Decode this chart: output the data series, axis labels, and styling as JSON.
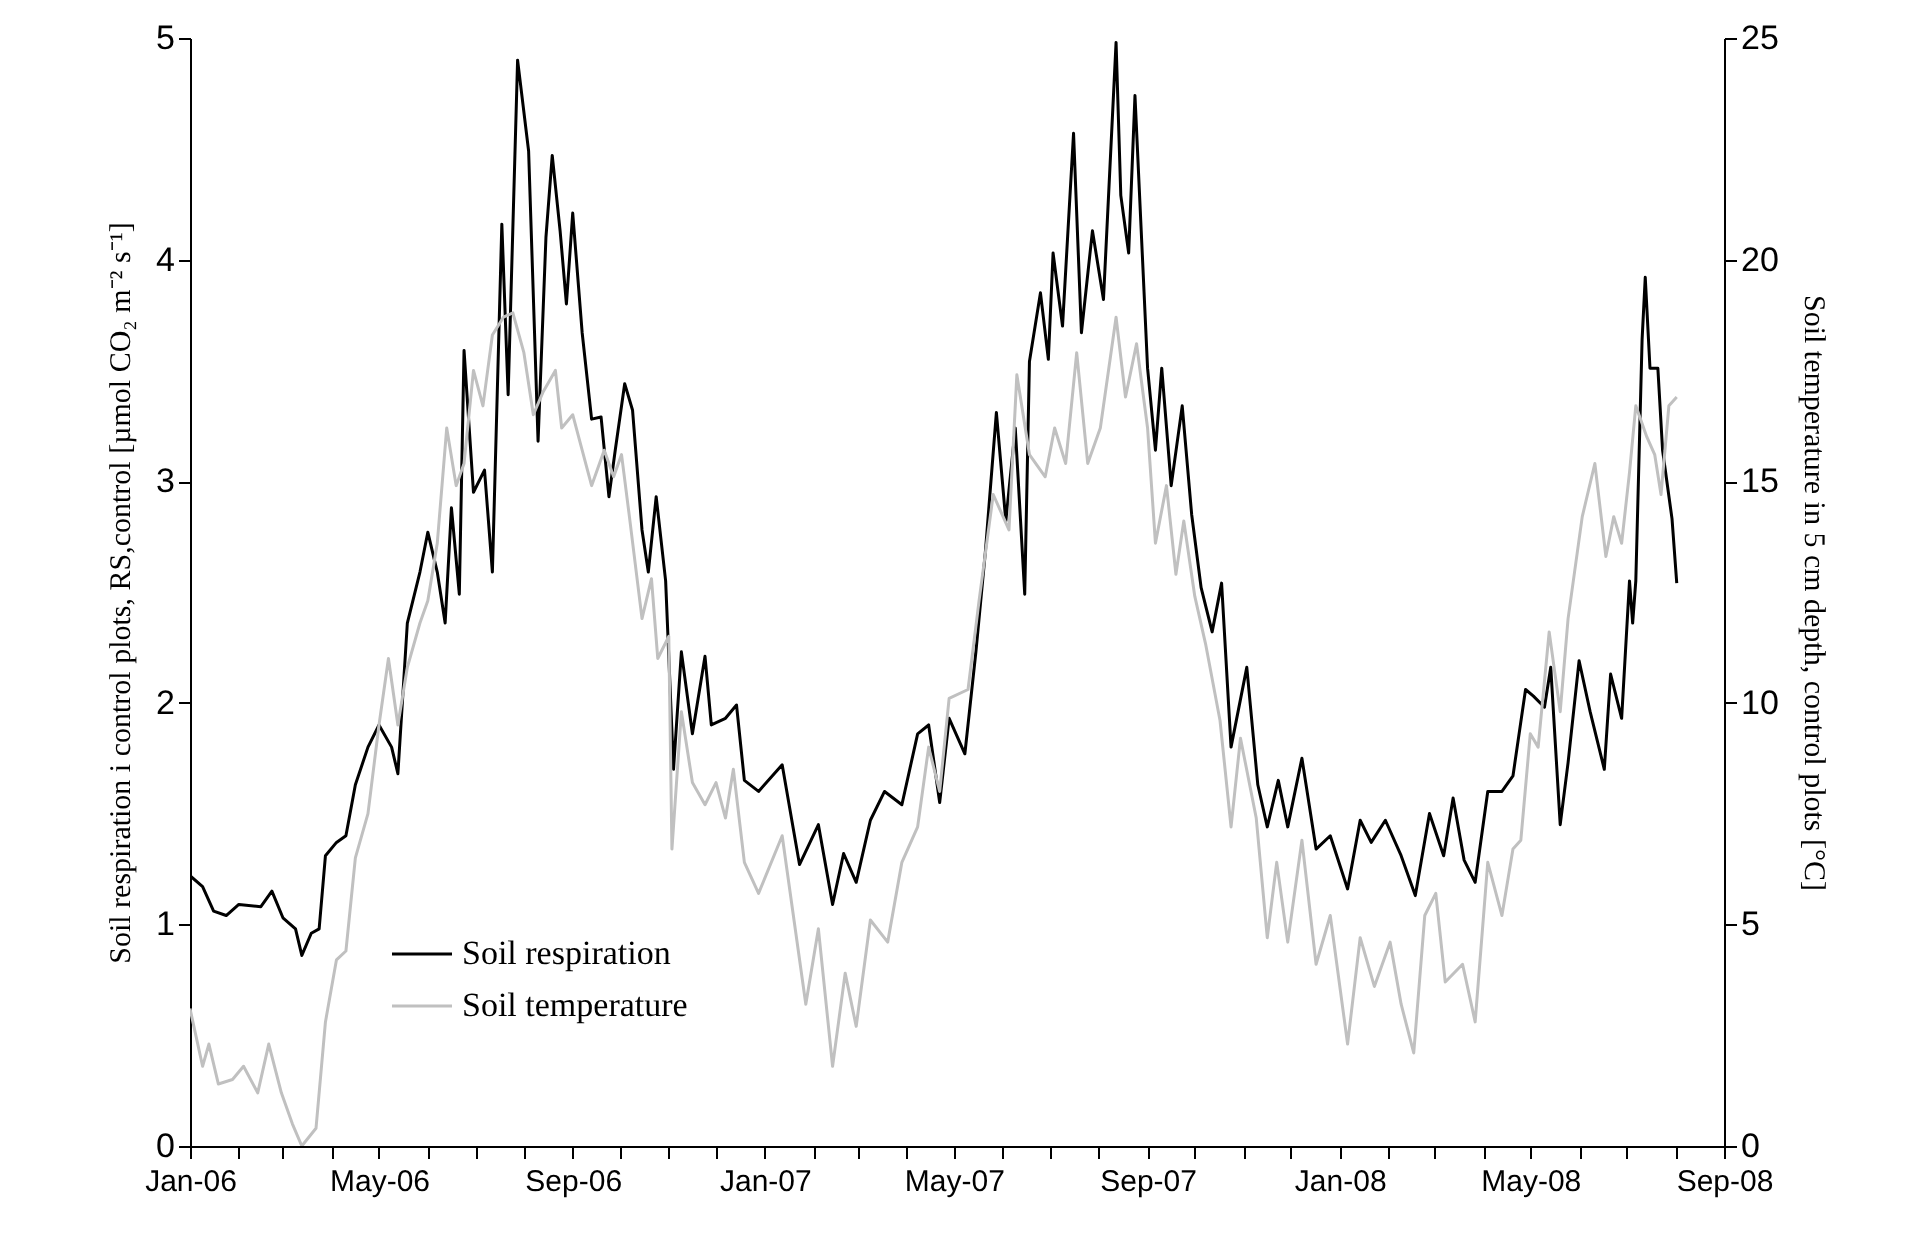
{
  "chart_data": {
    "type": "line",
    "ylabel": "Soil respiration i control plots, RS,control [µmol CO₂ m⁻² s⁻¹]",
    "y2label": "Soil temperature in 5 cm depth, control plots [°C]",
    "xlim": [
      "2006-01-01",
      "2008-09-01"
    ],
    "xticks": [
      {
        "value": "2006-01-01",
        "label": "Jan-06"
      },
      {
        "value": "2006-02-01",
        "label": null
      },
      {
        "value": "2006-03-01",
        "label": null
      },
      {
        "value": "2006-04-01",
        "label": null
      },
      {
        "value": "2006-05-01",
        "label": "May-06"
      },
      {
        "value": "2006-06-01",
        "label": null
      },
      {
        "value": "2006-07-01",
        "label": null
      },
      {
        "value": "2006-08-01",
        "label": null
      },
      {
        "value": "2006-09-01",
        "label": "Sep-06"
      },
      {
        "value": "2006-10-01",
        "label": null
      },
      {
        "value": "2006-11-01",
        "label": null
      },
      {
        "value": "2006-12-01",
        "label": null
      },
      {
        "value": "2007-01-01",
        "label": "Jan-07"
      },
      {
        "value": "2007-02-01",
        "label": null
      },
      {
        "value": "2007-03-01",
        "label": null
      },
      {
        "value": "2007-04-01",
        "label": null
      },
      {
        "value": "2007-05-01",
        "label": "May-07"
      },
      {
        "value": "2007-06-01",
        "label": null
      },
      {
        "value": "2007-07-01",
        "label": null
      },
      {
        "value": "2007-08-01",
        "label": null
      },
      {
        "value": "2007-09-01",
        "label": "Sep-07"
      },
      {
        "value": "2007-10-01",
        "label": null
      },
      {
        "value": "2007-11-01",
        "label": null
      },
      {
        "value": "2007-12-01",
        "label": null
      },
      {
        "value": "2008-01-01",
        "label": "Jan-08"
      },
      {
        "value": "2008-02-01",
        "label": null
      },
      {
        "value": "2008-03-01",
        "label": null
      },
      {
        "value": "2008-04-01",
        "label": null
      },
      {
        "value": "2008-05-01",
        "label": "May-08"
      },
      {
        "value": "2008-06-01",
        "label": null
      },
      {
        "value": "2008-07-01",
        "label": null
      },
      {
        "value": "2008-08-01",
        "label": null
      },
      {
        "value": "2008-09-01",
        "label": "Sep-08"
      }
    ],
    "ylim": [
      0,
      5
    ],
    "yticks": [
      0,
      1,
      2,
      3,
      4,
      5
    ],
    "y2lim": [
      0,
      25
    ],
    "y2ticks": [
      0,
      5,
      10,
      15,
      20,
      25
    ],
    "grid": false,
    "legend": "bottom left",
    "marker": "none",
    "line_style": "solid",
    "series": [
      {
        "name": "Soil respiration",
        "color": "#000000",
        "x": [
          "2006-01-01",
          "2006-01-09",
          "2006-01-16",
          "2006-01-24",
          "2006-02-01",
          "2006-02-15",
          "2006-02-22",
          "2006-03-01",
          "2006-03-09",
          "2006-03-13",
          "2006-03-19",
          "2006-03-24",
          "2006-03-28",
          "2006-04-04",
          "2006-04-10",
          "2006-04-16",
          "2006-04-24",
          "2006-05-01",
          "2006-05-09",
          "2006-05-13",
          "2006-05-19",
          "2006-05-27",
          "2006-06-01",
          "2006-06-07",
          "2006-06-12",
          "2006-06-16",
          "2006-06-21",
          "2006-06-24",
          "2006-06-30",
          "2006-07-07",
          "2006-07-12",
          "2006-07-18",
          "2006-07-22",
          "2006-07-28",
          "2006-08-04",
          "2006-08-10",
          "2006-08-15",
          "2006-08-19",
          "2006-08-24",
          "2006-08-28",
          "2006-09-01",
          "2006-09-07",
          "2006-09-13",
          "2006-09-19",
          "2006-09-24",
          "2006-09-28",
          "2006-10-04",
          "2006-10-09",
          "2006-10-15",
          "2006-10-19",
          "2006-10-24",
          "2006-10-30",
          "2006-11-04",
          "2006-11-09",
          "2006-11-16",
          "2006-11-24",
          "2006-11-28",
          "2006-12-07",
          "2006-12-14",
          "2006-12-19",
          "2006-12-28",
          "2007-01-12",
          "2007-01-23",
          "2007-02-04",
          "2007-02-13",
          "2007-02-20",
          "2007-02-28",
          "2007-03-09",
          "2007-03-18",
          "2007-03-29",
          "2007-04-08",
          "2007-04-15",
          "2007-04-22",
          "2007-04-28",
          "2007-05-08",
          "2007-05-15",
          "2007-05-21",
          "2007-05-28",
          "2007-06-03",
          "2007-06-09",
          "2007-06-15",
          "2007-06-18",
          "2007-06-25",
          "2007-06-30",
          "2007-07-03",
          "2007-07-09",
          "2007-07-16",
          "2007-07-21",
          "2007-07-28",
          "2007-08-04",
          "2007-08-12",
          "2007-08-15",
          "2007-08-20",
          "2007-08-24",
          "2007-09-01",
          "2007-09-06",
          "2007-09-10",
          "2007-09-16",
          "2007-09-23",
          "2007-09-29",
          "2007-10-05",
          "2007-10-12",
          "2007-10-18",
          "2007-10-24",
          "2007-11-03",
          "2007-11-10",
          "2007-11-16",
          "2007-11-23",
          "2007-11-29",
          "2007-12-08",
          "2007-12-17",
          "2007-12-26",
          "2008-01-06",
          "2008-01-14",
          "2008-01-21",
          "2008-01-30",
          "2008-02-09",
          "2008-02-18",
          "2008-02-27",
          "2008-03-07",
          "2008-03-13",
          "2008-03-20",
          "2008-03-27",
          "2008-04-04",
          "2008-04-13",
          "2008-04-20",
          "2008-04-28",
          "2008-05-03",
          "2008-05-10",
          "2008-05-14",
          "2008-05-20",
          "2008-05-25",
          "2008-06-01",
          "2008-06-08",
          "2008-06-17",
          "2008-06-21",
          "2008-06-28",
          "2008-07-03",
          "2008-07-05",
          "2008-07-07",
          "2008-07-11",
          "2008-07-13",
          "2008-07-16",
          "2008-07-21",
          "2008-07-24",
          "2008-07-30",
          "2008-08-02"
        ],
        "values": [
          1.22,
          1.17,
          1.06,
          1.04,
          1.09,
          1.08,
          1.15,
          1.03,
          0.98,
          0.86,
          0.96,
          0.98,
          1.31,
          1.37,
          1.4,
          1.63,
          1.8,
          1.9,
          1.8,
          1.68,
          2.36,
          2.59,
          2.77,
          2.59,
          2.36,
          2.88,
          2.49,
          3.59,
          2.95,
          3.05,
          2.59,
          4.16,
          3.39,
          4.9,
          4.49,
          3.18,
          4.1,
          4.47,
          4.13,
          3.8,
          4.21,
          3.67,
          3.28,
          3.29,
          2.93,
          3.14,
          3.44,
          3.32,
          2.78,
          2.59,
          2.93,
          2.55,
          1.7,
          2.23,
          1.86,
          2.21,
          1.9,
          1.93,
          1.99,
          1.65,
          1.6,
          1.72,
          1.27,
          1.45,
          1.09,
          1.32,
          1.19,
          1.47,
          1.6,
          1.54,
          1.86,
          1.9,
          1.55,
          1.93,
          1.77,
          2.23,
          2.68,
          3.31,
          2.82,
          3.24,
          2.49,
          3.54,
          3.85,
          3.55,
          4.03,
          3.7,
          4.57,
          3.67,
          4.13,
          3.82,
          4.98,
          4.29,
          4.03,
          4.74,
          3.51,
          3.14,
          3.51,
          2.98,
          3.34,
          2.85,
          2.52,
          2.32,
          2.54,
          1.8,
          2.16,
          1.63,
          1.44,
          1.65,
          1.44,
          1.75,
          1.34,
          1.4,
          1.16,
          1.47,
          1.37,
          1.47,
          1.31,
          1.13,
          1.5,
          1.31,
          1.57,
          1.29,
          1.19,
          1.6,
          1.6,
          1.67,
          2.06,
          2.03,
          1.98,
          2.16,
          1.45,
          1.73,
          2.19,
          1.96,
          1.7,
          2.13,
          1.93,
          2.55,
          2.36,
          2.55,
          3.64,
          3.92,
          3.51,
          3.51,
          3.14,
          2.83,
          2.54
        ]
      },
      {
        "name": "Soil temperature",
        "color": "#c0c0c0",
        "axis": "y2",
        "x": [
          "2006-01-01",
          "2006-01-09",
          "2006-01-13",
          "2006-01-19",
          "2006-01-28",
          "2006-02-04",
          "2006-02-13",
          "2006-02-20",
          "2006-02-28",
          "2006-03-07",
          "2006-03-13",
          "2006-03-22",
          "2006-03-28",
          "2006-04-04",
          "2006-04-10",
          "2006-04-16",
          "2006-04-24",
          "2006-05-01",
          "2006-05-07",
          "2006-05-13",
          "2006-05-19",
          "2006-05-27",
          "2006-06-01",
          "2006-06-07",
          "2006-06-13",
          "2006-06-19",
          "2006-06-24",
          "2006-06-30",
          "2006-07-06",
          "2006-07-12",
          "2006-07-19",
          "2006-07-25",
          "2006-08-01",
          "2006-08-07",
          "2006-08-13",
          "2006-08-21",
          "2006-08-25",
          "2006-09-01",
          "2006-09-07",
          "2006-09-13",
          "2006-09-21",
          "2006-09-27",
          "2006-10-02",
          "2006-10-07",
          "2006-10-15",
          "2006-10-21",
          "2006-10-25",
          "2006-11-01",
          "2006-11-03",
          "2006-11-09",
          "2006-11-16",
          "2006-11-24",
          "2006-12-01",
          "2006-12-07",
          "2006-12-12",
          "2006-12-19",
          "2006-12-28",
          "2007-01-12",
          "2007-01-27",
          "2007-02-04",
          "2007-02-13",
          "2007-02-21",
          "2007-02-28",
          "2007-03-09",
          "2007-03-20",
          "2007-03-29",
          "2007-04-08",
          "2007-04-15",
          "2007-04-22",
          "2007-04-28",
          "2007-05-10",
          "2007-05-17",
          "2007-05-26",
          "2007-06-05",
          "2007-06-10",
          "2007-06-18",
          "2007-06-28",
          "2007-07-04",
          "2007-07-11",
          "2007-07-18",
          "2007-07-25",
          "2007-08-02",
          "2007-08-12",
          "2007-08-18",
          "2007-08-25",
          "2007-09-01",
          "2007-09-06",
          "2007-09-13",
          "2007-09-19",
          "2007-09-24",
          "2007-10-01",
          "2007-10-08",
          "2007-10-17",
          "2007-10-24",
          "2007-10-30",
          "2007-11-09",
          "2007-11-16",
          "2007-11-22",
          "2007-11-29",
          "2007-12-08",
          "2007-12-17",
          "2007-12-26",
          "2008-01-06",
          "2008-01-14",
          "2008-01-23",
          "2008-02-02",
          "2008-02-09",
          "2008-02-17",
          "2008-02-24",
          "2008-03-02",
          "2008-03-08",
          "2008-03-19",
          "2008-03-27",
          "2008-04-04",
          "2008-04-13",
          "2008-04-20",
          "2008-04-25",
          "2008-05-01",
          "2008-05-06",
          "2008-05-13",
          "2008-05-20",
          "2008-05-25",
          "2008-06-03",
          "2008-06-11",
          "2008-06-18",
          "2008-06-23",
          "2008-06-28",
          "2008-07-03",
          "2008-07-07",
          "2008-07-14",
          "2008-07-19",
          "2008-07-23",
          "2008-07-28",
          "2008-08-02"
        ],
        "values": [
          3.1,
          1.8,
          2.3,
          1.4,
          1.5,
          1.8,
          1.2,
          2.3,
          1.2,
          0.5,
          0.0,
          0.4,
          2.8,
          4.2,
          4.4,
          6.5,
          7.5,
          9.5,
          11.0,
          9.5,
          10.8,
          11.8,
          12.3,
          13.6,
          16.2,
          14.9,
          15.4,
          17.5,
          16.7,
          18.3,
          18.7,
          18.8,
          17.9,
          16.5,
          17.0,
          17.5,
          16.2,
          16.5,
          15.7,
          14.9,
          15.7,
          15.1,
          15.6,
          14.2,
          11.9,
          12.8,
          11.0,
          11.5,
          6.7,
          9.8,
          8.2,
          7.7,
          8.2,
          7.4,
          8.5,
          6.4,
          5.7,
          7.0,
          3.2,
          4.9,
          1.8,
          3.9,
          2.7,
          5.1,
          4.6,
          6.4,
          7.2,
          9.0,
          8.0,
          10.1,
          10.3,
          12.3,
          14.7,
          13.9,
          17.4,
          15.6,
          15.1,
          16.2,
          15.4,
          17.9,
          15.4,
          16.2,
          18.7,
          16.9,
          18.1,
          16.2,
          13.6,
          14.9,
          12.9,
          14.1,
          12.4,
          11.3,
          9.6,
          7.2,
          9.2,
          7.4,
          4.7,
          6.4,
          4.6,
          6.9,
          4.1,
          5.2,
          2.3,
          4.7,
          3.6,
          4.6,
          3.2,
          2.1,
          5.2,
          5.7,
          3.7,
          4.1,
          2.8,
          6.4,
          5.2,
          6.7,
          6.9,
          9.3,
          9.0,
          11.6,
          9.8,
          11.9,
          14.2,
          15.4,
          13.3,
          14.2,
          13.6,
          15.2,
          16.7,
          16.0,
          15.6,
          14.7,
          16.7,
          16.9
        ]
      }
    ]
  }
}
